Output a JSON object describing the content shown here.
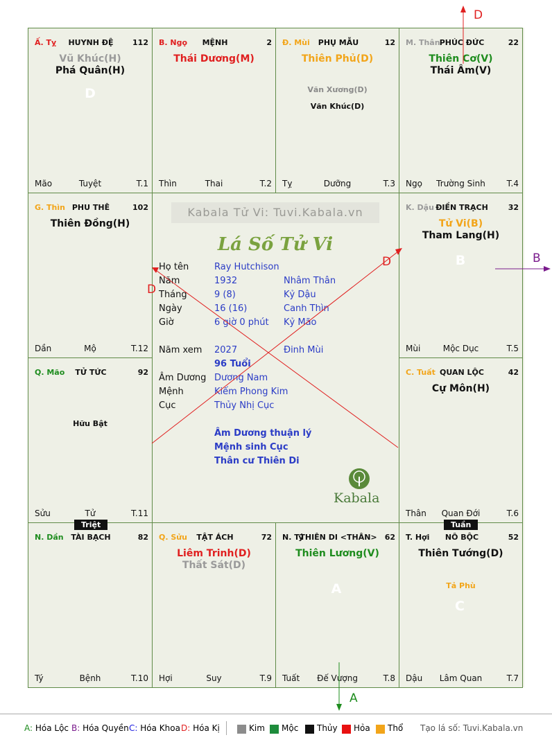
{
  "cells": [
    {
      "can": "Ấ. Tỵ",
      "can_color": "#e02020",
      "name": "HUYNH ĐỆ",
      "num": "112",
      "majors": [
        {
          "text": "Vũ Khúc(H)",
          "color": "#9a9a9a"
        },
        {
          "text": "Phá Quân(H)",
          "color": "#111111"
        }
      ],
      "minors": [],
      "foot_l": "Mão",
      "foot_m": "Tuyệt",
      "foot_r": "T.1"
    },
    {
      "can": "B. Ngọ",
      "can_color": "#e02020",
      "name": "MỆNH",
      "num": "2",
      "majors": [
        {
          "text": "Thái Dương(M)",
          "color": "#e02020"
        }
      ],
      "minors": [],
      "foot_l": "Thìn",
      "foot_m": "Thai",
      "foot_r": "T.2"
    },
    {
      "can": "Đ. Mùi",
      "can_color": "#f2a51a",
      "name": "PHỤ MẪU",
      "num": "12",
      "majors": [
        {
          "text": "Thiên Phủ(D)",
          "color": "#f2a51a"
        }
      ],
      "minors": [
        {
          "text": "Văn Xương(D)",
          "color": "#8a8a8a"
        },
        {
          "text": "Văn Khúc(D)",
          "color": "#111111"
        }
      ],
      "foot_l": "Tỵ",
      "foot_m": "Dưỡng",
      "foot_r": "T.3"
    },
    {
      "can": "M. Thân",
      "can_color": "#9a9a9a",
      "name": "PHÚC ĐỨC",
      "num": "22",
      "majors": [
        {
          "text": "Thiên Cơ(V)",
          "color": "#1e8c1e"
        },
        {
          "text": "Thái Âm(V)",
          "color": "#111111"
        }
      ],
      "minors": [],
      "foot_l": "Ngọ",
      "foot_m": "Trường Sinh",
      "foot_r": "T.4"
    },
    {
      "can": "G. Thìn",
      "can_color": "#f2a51a",
      "name": "PHU THÊ",
      "num": "102",
      "majors": [
        {
          "text": "Thiên Đồng(H)",
          "color": "#111111"
        }
      ],
      "minors": [],
      "foot_l": "Dần",
      "foot_m": "Mộ",
      "foot_r": "T.12"
    },
    {
      "can": "K. Dậu",
      "can_color": "#9a9a9a",
      "name": "ĐIỀN TRẠCH",
      "num": "32",
      "majors": [
        {
          "text": "Tử Vi(B)",
          "color": "#f2a51a"
        },
        {
          "text": "Tham Lang(H)",
          "color": "#111111"
        }
      ],
      "minors": [],
      "foot_l": "Mùi",
      "foot_m": "Mộc Dục",
      "foot_r": "T.5"
    },
    {
      "can": "Q. Mão",
      "can_color": "#1e8c1e",
      "name": "TỬ TỨC",
      "num": "92",
      "majors": [],
      "minors": [
        {
          "text": "Hữu Bật",
          "color": "#111111"
        }
      ],
      "foot_l": "Sửu",
      "foot_m": "Tử",
      "foot_r": "T.11"
    },
    {
      "can": "C. Tuất",
      "can_color": "#f2a51a",
      "name": "QUAN LỘC",
      "num": "42",
      "majors": [
        {
          "text": "Cự Môn(H)",
          "color": "#111111"
        }
      ],
      "minors": [],
      "foot_l": "Thân",
      "foot_m": "Quan Đới",
      "foot_r": "T.6"
    },
    {
      "can": "N. Dần",
      "can_color": "#1e8c1e",
      "name": "TÀI BẠCH",
      "num": "82",
      "majors": [],
      "minors": [],
      "foot_l": "Tý",
      "foot_m": "Bệnh",
      "foot_r": "T.10"
    },
    {
      "can": "Q. Sửu",
      "can_color": "#f2a51a",
      "name": "TẬT ÁCH",
      "num": "72",
      "majors": [
        {
          "text": "Liêm Trinh(D)",
          "color": "#e02020"
        },
        {
          "text": "Thất Sát(D)",
          "color": "#9a9a9a"
        }
      ],
      "minors": [],
      "foot_l": "Hợi",
      "foot_m": "Suy",
      "foot_r": "T.9"
    },
    {
      "can": "N. Tý",
      "can_color": "#111111",
      "name": "THIÊN DI <THÂN>",
      "num": "62",
      "majors": [
        {
          "text": "Thiên Lương(V)",
          "color": "#1e8c1e"
        }
      ],
      "minors": [],
      "foot_l": "Tuất",
      "foot_m": "Đế Vượng",
      "foot_r": "T.8"
    },
    {
      "can": "T. Hợi",
      "can_color": "#111111",
      "name": "NÔ BỘC",
      "num": "52",
      "majors": [
        {
          "text": "Thiên Tướng(D)",
          "color": "#111111"
        }
      ],
      "minors": [
        {
          "text": "Tả Phù",
          "color": "#f2a51a"
        }
      ],
      "foot_l": "Dậu",
      "foot_m": "Lâm Quan",
      "foot_r": "T.7"
    }
  ],
  "badges": {
    "d_huynhde": {
      "letter": "D",
      "color": "#e81010"
    },
    "b_dientrach": {
      "letter": "B",
      "color": "#7a1b8c"
    },
    "a_thiendi": {
      "letter": "A",
      "color": "#118a11"
    },
    "c_nobo": {
      "letter": "C",
      "color": "#1a1ae0"
    }
  },
  "tags": {
    "triet": "Triệt",
    "tuan": "Tuần"
  },
  "center": {
    "brand": "Kabala Tử Vi: Tuvi.Kabala.vn",
    "title": "Lá Số Tử Vi",
    "rows": [
      {
        "label": "Họ tên",
        "v1": "Ray Hutchison",
        "v2": ""
      },
      {
        "label": "Năm",
        "v1": "1932",
        "v2": "Nhâm Thân"
      },
      {
        "label": "Tháng",
        "v1": "9  (8)",
        "v2": "Kỷ Dậu"
      },
      {
        "label": "Ngày",
        "v1": "16  (16)",
        "v2": "Canh Thìn"
      },
      {
        "label": "Giờ",
        "v1": "6 giờ 0 phút",
        "v2": "Kỷ Mão"
      },
      {
        "label": "Năm xem",
        "v1": "2027",
        "v2": "Đinh Mùi"
      },
      {
        "label": "",
        "v1": "96 Tuổi",
        "v2": ""
      },
      {
        "label": "Âm Dương",
        "v1": "Dương Nam",
        "v2": ""
      },
      {
        "label": "Mệnh",
        "v1": "Kiếm Phong Kim",
        "v2": ""
      },
      {
        "label": "Cục",
        "v1": "Thủy Nhị Cục",
        "v2": ""
      }
    ],
    "notes": [
      "Âm Dương thuận lý",
      "Mệnh sinh Cục",
      "Thân cư Thiên Di"
    ],
    "logo": "Kabala"
  },
  "arrow_labels": {
    "top": "D",
    "right": "B",
    "bottom": "A",
    "left_inner": "D",
    "right_inner": "D"
  },
  "legend": {
    "items": [
      {
        "key": "A:",
        "label": "Hóa Lộc",
        "color": "#1e8c1e"
      },
      {
        "key": "B:",
        "label": "Hóa Quyền",
        "color": "#7a1b8c"
      },
      {
        "key": "C:",
        "label": "Hóa Khoa",
        "color": "#1a1ae0"
      },
      {
        "key": "D:",
        "label": "Hóa Kị",
        "color": "#e02020"
      }
    ],
    "elements": [
      {
        "label": "Kim",
        "color": "#8c8c8c"
      },
      {
        "label": "Mộc",
        "color": "#1e8c3c"
      },
      {
        "label": "Thủy",
        "color": "#111111"
      },
      {
        "label": "Hỏa",
        "color": "#e81010"
      },
      {
        "label": "Thổ",
        "color": "#f2a51a"
      }
    ],
    "site": "Tạo lá số: Tuvi.Kabala.vn"
  }
}
